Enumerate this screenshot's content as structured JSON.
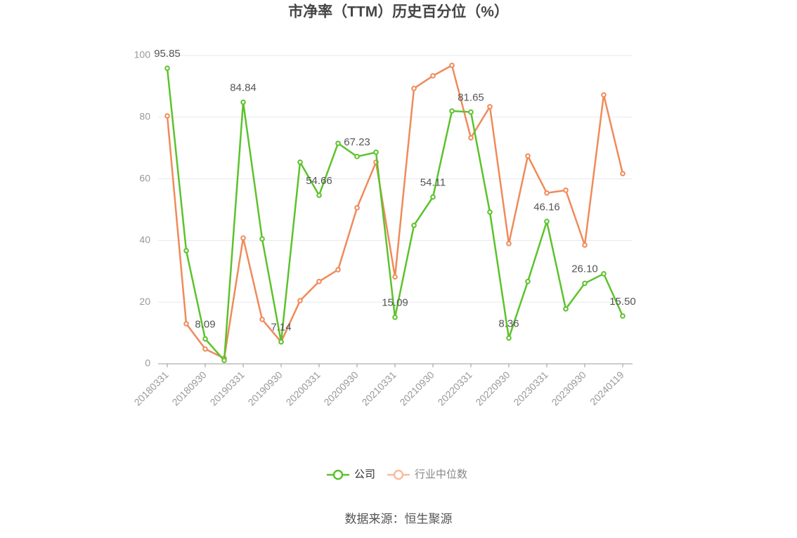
{
  "chart_data": {
    "type": "line",
    "title": "市净率（TTM）历史百分位（%）",
    "categories": [
      "20180331",
      null,
      "20180930",
      null,
      "20190331",
      null,
      "20190930",
      null,
      "20200331",
      null,
      "20200930",
      null,
      "20210331",
      null,
      "20210930",
      null,
      "20220331",
      null,
      "20220930",
      null,
      "20230331",
      null,
      "20230930",
      null,
      "20240119"
    ],
    "series": [
      {
        "name": "公司",
        "color": "#5cc22c",
        "values": [
          95.85,
          36.7,
          8.09,
          1.1,
          84.84,
          40.5,
          7.14,
          65.4,
          54.66,
          71.5,
          67.23,
          68.6,
          15.09,
          44.9,
          54.11,
          82.0,
          81.65,
          49.2,
          8.36,
          26.7,
          46.16,
          17.8,
          26.1,
          29.2,
          15.5
        ],
        "value_labels": [
          "95.85",
          null,
          "8.09",
          null,
          "84.84",
          null,
          "7.14",
          null,
          "54.66",
          null,
          "67.23",
          null,
          "15.09",
          null,
          "54.11",
          null,
          "81.65",
          null,
          "8.36",
          null,
          "46.16",
          null,
          "26.10",
          null,
          "15.50"
        ]
      },
      {
        "name": "行业中位数",
        "color": "#f08a5a",
        "values": [
          80.4,
          13.0,
          4.8,
          1.8,
          40.8,
          14.4,
          7.1,
          20.5,
          26.7,
          30.5,
          50.6,
          65.4,
          28.2,
          89.3,
          93.4,
          96.8,
          73.3,
          83.4,
          39.0,
          67.4,
          55.4,
          56.3,
          38.5,
          87.2,
          61.7
        ]
      }
    ],
    "ylim": [
      0,
      100
    ],
    "yticks": [
      0,
      20,
      40,
      60,
      80,
      100
    ],
    "grid": true,
    "source": "数据来源：恒生聚源"
  }
}
